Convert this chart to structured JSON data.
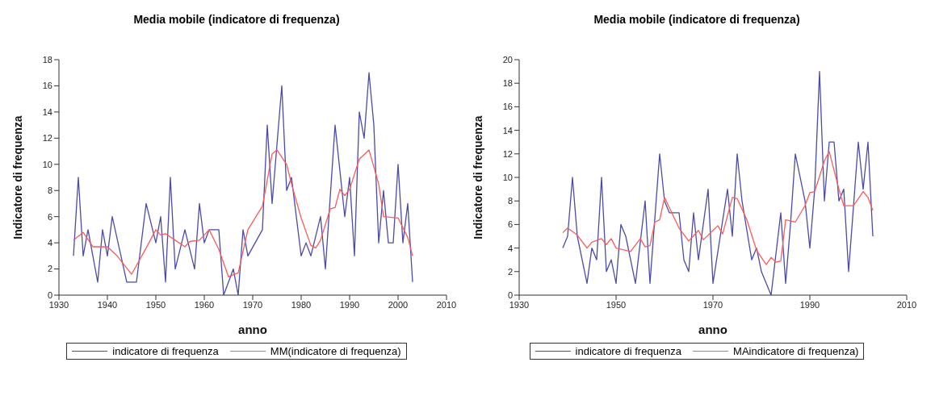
{
  "chart_data": [
    {
      "type": "line",
      "title": "Media mobile (indicatore di frequenza)",
      "xlabel": "anno",
      "ylabel": "Indicatore di frequenza",
      "xlim": [
        1930,
        2010
      ],
      "xticks": [
        1930,
        1940,
        1950,
        1960,
        1970,
        1980,
        1990,
        2000,
        2010
      ],
      "ylim": [
        0,
        18
      ],
      "yticks": [
        0,
        2,
        4,
        6,
        8,
        10,
        12,
        14,
        16,
        18
      ],
      "grid": false,
      "legend": "bottom",
      "marker": "none",
      "line_style": "solid",
      "series": [
        {
          "name": "indicatore di frequenza",
          "color": "#4b4bab",
          "x": [
            1933,
            1934,
            1935,
            1936,
            1938,
            1939,
            1940,
            1941,
            1944,
            1946,
            1948,
            1950,
            1951,
            1952,
            1953,
            1954,
            1956,
            1958,
            1959,
            1960,
            1961,
            1963,
            1964,
            1966,
            1967,
            1968,
            1969,
            1972,
            1973,
            1974,
            1976,
            1977,
            1978,
            1980,
            1981,
            1982,
            1984,
            1985,
            1987,
            1989,
            1990,
            1991,
            1992,
            1993,
            1994,
            1995,
            1996,
            1997,
            1998,
            1999,
            2000,
            2001,
            2002,
            2003
          ],
          "values": [
            3,
            9,
            3,
            5,
            1,
            5,
            3,
            6,
            1,
            1,
            7,
            4,
            6,
            1,
            9,
            2,
            5,
            2,
            7,
            4,
            5,
            5,
            0,
            2,
            0,
            5,
            3,
            5,
            13,
            7,
            16,
            8,
            9,
            3,
            4,
            3,
            6,
            2,
            13,
            6,
            9,
            3,
            14,
            12,
            17,
            13,
            4,
            8,
            4,
            4,
            10,
            4,
            7,
            1
          ]
        },
        {
          "name": "MM(indicatore di frequenza)",
          "color": "#ff5a5a",
          "x": [
            1933,
            1935,
            1937,
            1940,
            1942,
            1945,
            1948,
            1950,
            1951,
            1952,
            1954,
            1956,
            1957,
            1959,
            1961,
            1963,
            1965,
            1967,
            1969,
            1972,
            1974,
            1975,
            1977,
            1978,
            1980,
            1982,
            1983,
            1984,
            1986,
            1987,
            1988,
            1989,
            1990,
            1992,
            1994,
            1996,
            1997,
            2000,
            2002,
            2003
          ],
          "values": [
            4.2,
            4.8,
            3.7,
            3.7,
            3.0,
            1.6,
            3.6,
            5.0,
            4.6,
            4.7,
            4.2,
            3.7,
            4.1,
            4.2,
            5.0,
            3.5,
            1.4,
            1.7,
            5.0,
            6.8,
            10.8,
            11.1,
            10.0,
            8.5,
            5.9,
            3.8,
            3.6,
            4.2,
            6.6,
            6.7,
            8.1,
            7.6,
            8.1,
            10.4,
            11.1,
            8.5,
            6.0,
            5.9,
            4.4,
            3.0
          ]
        }
      ]
    },
    {
      "type": "line",
      "title": "Media mobile (indicatore di frequenza)",
      "xlabel": "anno",
      "ylabel": "Indicatore di frequenza",
      "xlim": [
        1930,
        2010
      ],
      "xticks": [
        1930,
        1950,
        1970,
        1990,
        2010
      ],
      "ylim": [
        0,
        20
      ],
      "yticks": [
        0,
        2,
        4,
        6,
        8,
        10,
        12,
        14,
        16,
        18,
        20
      ],
      "grid": false,
      "legend": "bottom",
      "marker": "none",
      "line_style": "solid",
      "series": [
        {
          "name": "indicatore di frequenza",
          "color": "#4b4bab",
          "x": [
            1939,
            1940,
            1941,
            1942,
            1944,
            1945,
            1946,
            1947,
            1948,
            1949,
            1950,
            1951,
            1952,
            1954,
            1956,
            1957,
            1959,
            1960,
            1961,
            1963,
            1964,
            1965,
            1966,
            1967,
            1969,
            1970,
            1973,
            1974,
            1975,
            1976,
            1978,
            1979,
            1980,
            1982,
            1984,
            1985,
            1986,
            1987,
            1989,
            1990,
            1991,
            1992,
            1993,
            1994,
            1995,
            1996,
            1997,
            1998,
            2000,
            2001,
            2002,
            2003
          ],
          "values": [
            4,
            5,
            10,
            5,
            1,
            4,
            3,
            10,
            2,
            3,
            1,
            6,
            5,
            1,
            8,
            1,
            12,
            8,
            7,
            7,
            3,
            2,
            7,
            3,
            9,
            1,
            9,
            5,
            12,
            8,
            3,
            4,
            2,
            0,
            7,
            1,
            6,
            12,
            8,
            4,
            9,
            19,
            8,
            13,
            13,
            8,
            9,
            2,
            13,
            9,
            13,
            5
          ]
        },
        {
          "name": "MAindicatore di frequenza)",
          "color": "#ff5a5a",
          "x": [
            1939,
            1940,
            1942,
            1944,
            1945,
            1947,
            1948,
            1949,
            1950,
            1953,
            1955,
            1956,
            1957,
            1958,
            1959,
            1960,
            1963,
            1965,
            1967,
            1968,
            1971,
            1972,
            1974,
            1975,
            1977,
            1979,
            1981,
            1982,
            1983,
            1984,
            1985,
            1987,
            1989,
            1990,
            1991,
            1993,
            1994,
            1996,
            1997,
            1999,
            2001,
            2002,
            2003
          ],
          "values": [
            5.3,
            5.7,
            5.1,
            4.0,
            4.5,
            4.8,
            4.3,
            4.8,
            4.0,
            3.7,
            4.8,
            4.1,
            4.2,
            6.2,
            6.4,
            8.3,
            5.7,
            4.6,
            5.5,
            4.7,
            5.9,
            5.2,
            8.3,
            8.2,
            6.4,
            3.8,
            2.6,
            3.2,
            2.8,
            2.9,
            6.4,
            6.2,
            7.6,
            8.7,
            8.8,
            11.4,
            12.2,
            9.0,
            7.6,
            7.6,
            8.8,
            8.3,
            7.2
          ]
        }
      ]
    }
  ]
}
